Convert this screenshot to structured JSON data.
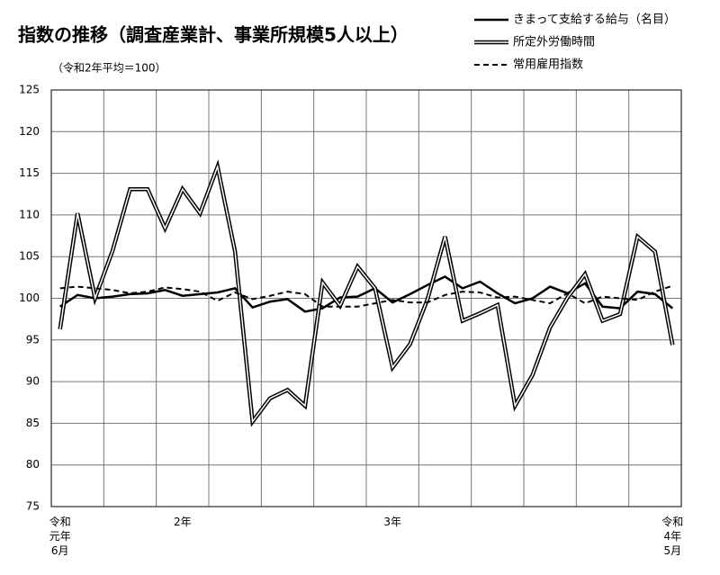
{
  "chart_data": {
    "type": "line",
    "title": "指数の推移（調査産業計、事業所規模5人以上）",
    "subtitle": "（令和2年平均＝100）",
    "categories": [
      "令和\n元年\n6月",
      null,
      null,
      null,
      null,
      null,
      null,
      "2年",
      null,
      null,
      null,
      null,
      null,
      null,
      null,
      null,
      null,
      null,
      null,
      "3年",
      null,
      null,
      null,
      null,
      null,
      null,
      null,
      null,
      null,
      null,
      null,
      null,
      null,
      null,
      null,
      "令和\n4年\n5月"
    ],
    "series": [
      {
        "name": "きまって支給する給与（名目）",
        "color": "#000000",
        "style": "solid",
        "values": [
          99.0,
          100.4,
          100.0,
          100.2,
          100.5,
          100.6,
          101.0,
          100.3,
          100.5,
          100.7,
          101.2,
          98.9,
          99.6,
          99.9,
          98.4,
          98.8,
          100.1,
          100.2,
          101.2,
          99.5,
          100.5,
          101.6,
          102.6,
          101.2,
          102.0,
          100.6,
          99.4,
          100.0,
          101.4,
          100.6,
          101.8,
          99.0,
          98.8,
          100.8,
          100.5,
          98.8
        ]
      },
      {
        "name": "所定外労働時間",
        "color": "#000000",
        "style": "double",
        "values": [
          96.3,
          110.2,
          100.0,
          105.7,
          113.1,
          113.1,
          108.4,
          113.1,
          110.2,
          115.8,
          105.6,
          85.2,
          88.0,
          89.0,
          87.1,
          101.9,
          99.1,
          103.8,
          101.2,
          91.7,
          94.5,
          99.9,
          107.4,
          97.3,
          98.2,
          99.2,
          87.1,
          90.8,
          96.5,
          100.1,
          102.9,
          97.3,
          98.1,
          107.4,
          105.6,
          94.4
        ]
      },
      {
        "name": "常用雇用指数",
        "color": "#000000",
        "style": "dashed",
        "values": [
          101.2,
          101.4,
          101.2,
          101.0,
          100.6,
          100.8,
          101.3,
          101.1,
          100.8,
          99.7,
          100.7,
          99.9,
          100.3,
          100.8,
          100.5,
          99.0,
          99.0,
          99.0,
          99.4,
          99.8,
          99.5,
          99.5,
          100.4,
          100.8,
          100.7,
          100.1,
          100.2,
          99.8,
          99.4,
          100.6,
          99.4,
          100.2,
          100.0,
          99.8,
          100.8,
          101.5
        ]
      }
    ],
    "ylim": [
      75,
      125
    ],
    "yticks": [
      75,
      80,
      85,
      90,
      95,
      100,
      105,
      110,
      115,
      120,
      125
    ],
    "grid": true,
    "legend": "top-right"
  }
}
